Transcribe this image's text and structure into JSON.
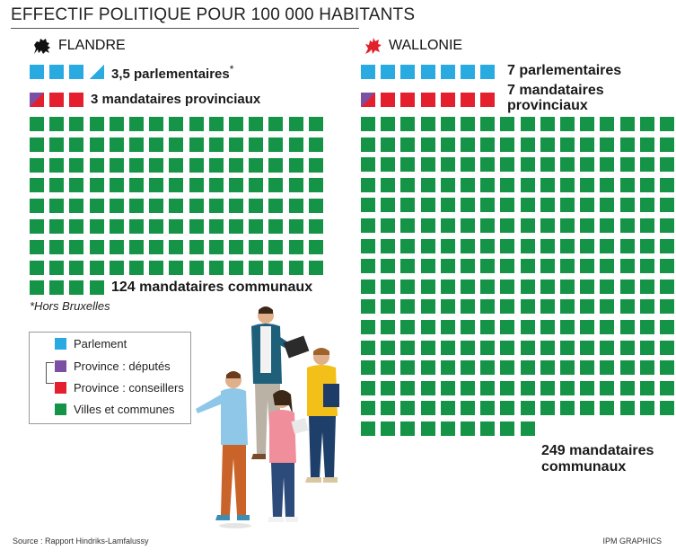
{
  "page": {
    "title": "EFFECTIF POLITIQUE POUR 100 000 HABITANTS"
  },
  "colors": {
    "parlement": "#29abe2",
    "deputes": "#7b4fa3",
    "conseillers": "#e5202e",
    "communes": "#159447"
  },
  "flandre": {
    "name": "FLANDRE",
    "icon": "flemish-lion-icon",
    "parlementaires_label": "3,5 parlementaires",
    "asterisk": "*",
    "provinciaux_label": "3 mandataires provinciaux",
    "communaux_label": "124 mandataires communaux",
    "footnote": "*Hors Bruxelles"
  },
  "wallonie": {
    "name": "WALLONIE",
    "icon": "walloon-rooster-icon",
    "parlementaires_label": "7 parlementaires",
    "provinciaux_line1": "7 mandataires",
    "provinciaux_line2": "provinciaux",
    "communaux_line1": "249 mandataires",
    "communaux_line2": "communaux"
  },
  "legend": {
    "items": [
      {
        "label": "Parlement",
        "color": "#29abe2"
      },
      {
        "label": "Province : députés",
        "color": "#7b4fa3"
      },
      {
        "label": "Province : conseillers",
        "color": "#e5202e"
      },
      {
        "label": "Villes et communes",
        "color": "#159447"
      }
    ]
  },
  "footer": {
    "source": "Source : Rapport Hindriks-Lamfalussy",
    "credit": "IPM GRAPHICS"
  },
  "chart_data": {
    "type": "pictograph",
    "unit": "1 square = 1 mandataire pour 100 000 habitants",
    "categories": [
      "Parlement",
      "Province",
      "Villes et communes"
    ],
    "series": [
      {
        "name": "FLANDRE",
        "values": [
          3.5,
          3,
          124
        ]
      },
      {
        "name": "WALLONIE",
        "values": [
          7,
          7,
          249
        ]
      }
    ]
  }
}
